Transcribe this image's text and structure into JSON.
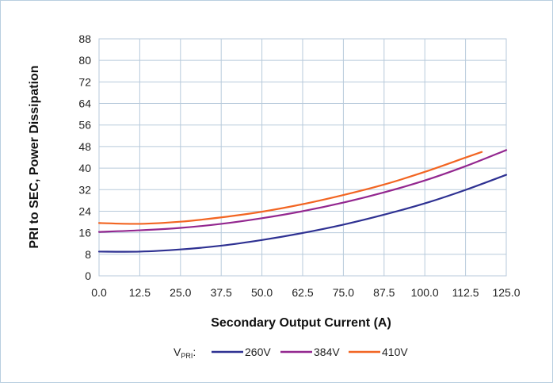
{
  "chart_data": {
    "type": "line",
    "title": "",
    "xlabel": "Secondary Output Current (A)",
    "ylabel": "PRI to SEC, Power Dissipation",
    "xlim": [
      0,
      125
    ],
    "ylim": [
      0,
      88
    ],
    "x_ticks": [
      "0.0",
      "12.5",
      "25.0",
      "37.5",
      "50.0",
      "62.5",
      "75.0",
      "87.5",
      "100.0",
      "112.5",
      "125.0"
    ],
    "y_ticks": [
      "0",
      "8",
      "16",
      "24",
      "32",
      "40",
      "48",
      "56",
      "64",
      "72",
      "80",
      "88"
    ],
    "grid": true,
    "legend_position": "bottom",
    "legend_prefix": "V",
    "legend_prefix_sub": "PRI",
    "legend_suffix": ":",
    "series": [
      {
        "name": "260V",
        "color": "#2e3192",
        "points": [
          [
            0,
            9.0
          ],
          [
            12.5,
            9.0
          ],
          [
            25,
            9.8
          ],
          [
            37.5,
            11.2
          ],
          [
            50,
            13.3
          ],
          [
            62.5,
            15.9
          ],
          [
            75,
            19.0
          ],
          [
            87.5,
            22.7
          ],
          [
            100,
            26.9
          ],
          [
            112.5,
            31.9
          ],
          [
            125,
            37.5
          ]
        ]
      },
      {
        "name": "384V",
        "color": "#93278f",
        "points": [
          [
            0,
            16.3
          ],
          [
            12.5,
            16.9
          ],
          [
            25,
            17.8
          ],
          [
            37.5,
            19.3
          ],
          [
            50,
            21.4
          ],
          [
            62.5,
            24.0
          ],
          [
            75,
            27.2
          ],
          [
            87.5,
            31.0
          ],
          [
            100,
            35.4
          ],
          [
            112.5,
            40.7
          ],
          [
            125,
            46.7
          ]
        ]
      },
      {
        "name": "410V",
        "color": "#f26522",
        "points": [
          [
            0,
            19.6
          ],
          [
            12.5,
            19.3
          ],
          [
            25,
            20.1
          ],
          [
            37.5,
            21.7
          ],
          [
            50,
            23.8
          ],
          [
            62.5,
            26.6
          ],
          [
            75,
            30.0
          ],
          [
            87.5,
            33.9
          ],
          [
            100,
            38.6
          ],
          [
            112.5,
            43.9
          ],
          [
            117.5,
            46.0
          ]
        ]
      }
    ]
  }
}
